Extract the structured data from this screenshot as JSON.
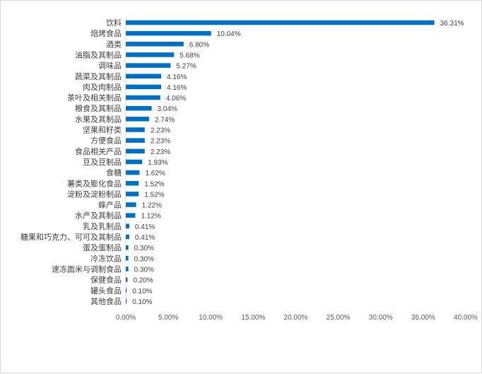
{
  "chart_data": {
    "type": "bar",
    "orientation": "horizontal",
    "title": "",
    "xlabel": "",
    "ylabel": "",
    "bar_color": "#0070c0",
    "text_color": "#404040",
    "grid": false,
    "legend": "none",
    "xlim": [
      0,
      40
    ],
    "x_ticks": [
      "0.00%",
      "5.00%",
      "10.00%",
      "15.00%",
      "20.00%",
      "25.00%",
      "30.00%",
      "35.00%",
      "40.00%"
    ],
    "categories": [
      "饮料",
      "焙烤食品",
      "酒类",
      "油脂及其制品",
      "调味品",
      "蔬菜及其制品",
      "肉及肉制品",
      "茶叶及相关制品",
      "粮食及其制品",
      "水果及其制品",
      "坚果和籽类",
      "方便食品",
      "食品相关产品",
      "豆及豆制品",
      "食糖",
      "薯类及膨化食品",
      "淀粉及淀粉制品",
      "蜂产品",
      "水产及其制品",
      "乳及乳制品",
      "糖果和巧克力、可可及其制品",
      "蛋及蛋制品",
      "冷冻饮品",
      "速冻面米与调制食品",
      "保健食品",
      "罐头食品",
      "其他食品"
    ],
    "values": [
      36.31,
      10.04,
      6.8,
      5.68,
      5.27,
      4.16,
      4.16,
      4.06,
      3.04,
      2.74,
      2.23,
      2.23,
      2.23,
      1.93,
      1.62,
      1.52,
      1.52,
      1.22,
      1.12,
      0.41,
      0.41,
      0.3,
      0.3,
      0.3,
      0.2,
      0.1,
      0.1
    ],
    "value_labels": [
      "36.31%",
      "10.04%",
      "6.80%",
      "5.68%",
      "5.27%",
      "4.16%",
      "4.16%",
      "4.06%",
      "3.04%",
      "2.74%",
      "2.23%",
      "2.23%",
      "2.23%",
      "1.93%",
      "1.62%",
      "1.52%",
      "1.52%",
      "1.22%",
      "1.12%",
      "0.41%",
      "0.41%",
      "0.30%",
      "0.30%",
      "0.30%",
      "0.20%",
      "0.10%",
      "0.10%"
    ]
  }
}
